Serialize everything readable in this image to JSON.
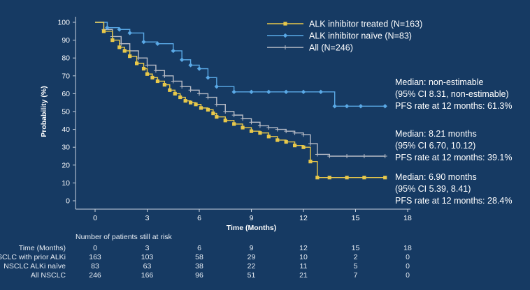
{
  "chart_data": {
    "type": "line",
    "subtype": "kaplan-meier",
    "xlabel": "Time (Months)",
    "ylabel": "Probability (%)",
    "xlim": [
      0,
      18
    ],
    "ylim": [
      0,
      100
    ],
    "xticks": [
      0,
      3,
      6,
      9,
      12,
      15,
      18
    ],
    "yticks": [
      0,
      10,
      20,
      30,
      40,
      50,
      60,
      70,
      80,
      90,
      100
    ],
    "grid": false,
    "legend_position": "top-right",
    "series": [
      {
        "name": "ALK inhibitor treated (N=163)",
        "color": "#e8c84a",
        "marker": "square",
        "x": [
          0,
          0.5,
          1.0,
          1.4,
          1.7,
          2.0,
          2.4,
          2.8,
          3.0,
          3.3,
          3.6,
          4.0,
          4.3,
          4.6,
          4.9,
          5.2,
          5.5,
          5.8,
          6.1,
          6.5,
          6.8,
          7.0,
          7.5,
          8.0,
          8.5,
          9.0,
          9.5,
          10.0,
          10.5,
          11.0,
          11.5,
          12.0,
          12.4,
          12.8,
          13.5,
          14.5,
          15.5,
          16.7
        ],
        "y": [
          100,
          95,
          90,
          86,
          84,
          81,
          77,
          74,
          71,
          69,
          67,
          65,
          62,
          60,
          58,
          56,
          55,
          54,
          52,
          51,
          49,
          47,
          45,
          43,
          41,
          39,
          38,
          36,
          34,
          33,
          31,
          30,
          22,
          13,
          13,
          13,
          13,
          13
        ]
      },
      {
        "name": "ALK inhibitor naïve (N=83)",
        "color": "#5aa9e6",
        "marker": "diamond",
        "x": [
          0,
          0.7,
          1.4,
          2.0,
          2.8,
          3.6,
          4.5,
          5.0,
          5.5,
          6.0,
          6.5,
          7.0,
          8.0,
          9.0,
          10.0,
          11.0,
          12.0,
          13.0,
          13.8,
          14.5,
          15.3,
          16.7
        ],
        "y": [
          100,
          97,
          96,
          94,
          89,
          88,
          84,
          79,
          76,
          74,
          69,
          64,
          61,
          61,
          61,
          61,
          61,
          61,
          53,
          53,
          53,
          53
        ]
      },
      {
        "name": "All (N=246)",
        "color": "#b8bcc6",
        "marker": "plus",
        "x": [
          0,
          0.5,
          1.0,
          1.5,
          2.0,
          2.5,
          3.0,
          3.5,
          4.0,
          4.5,
          5.0,
          5.5,
          6.0,
          6.5,
          7.0,
          7.5,
          8.0,
          8.5,
          9.0,
          9.5,
          10.0,
          10.5,
          11.0,
          11.5,
          12.0,
          12.4,
          12.8,
          13.5,
          14.5,
          15.5,
          16.7
        ],
        "y": [
          100,
          96,
          92,
          88,
          84,
          80,
          76,
          73,
          70,
          67,
          64,
          62,
          60,
          58,
          54,
          50,
          48,
          46,
          44,
          42,
          41,
          40,
          39,
          38,
          37,
          32,
          26,
          25,
          25,
          25,
          25
        ]
      }
    ]
  },
  "annotations": [
    {
      "median": "Median: non-estimable",
      "ci": "(95% CI 8.31, non-estimable)",
      "pfs": "PFS rate at 12 months: 61.3%"
    },
    {
      "median": "Median: 8.21 months",
      "ci": "(95% CI 6.70, 10.12)",
      "pfs": "PFS rate at 12 months: 39.1%"
    },
    {
      "median": "Median: 6.90 months",
      "ci": "(95% CI 5.39, 8.41)",
      "pfs": "PFS rate at 12 months: 28.4%"
    }
  ],
  "risk_table": {
    "title": "Number of patients still at risk",
    "rows": [
      {
        "label": "Time (Months)",
        "values": [
          "0",
          "3",
          "6",
          "9",
          "12",
          "15",
          "18"
        ]
      },
      {
        "label": "NSCLC with prior ALKi",
        "values": [
          "163",
          "103",
          "58",
          "29",
          "10",
          "2",
          "0"
        ]
      },
      {
        "label": "NSCLC ALKi naïve",
        "values": [
          "83",
          "63",
          "38",
          "22",
          "11",
          "5",
          "0"
        ]
      },
      {
        "label": "All NSCLC",
        "values": [
          "246",
          "166",
          "96",
          "51",
          "21",
          "7",
          "0"
        ]
      }
    ]
  }
}
